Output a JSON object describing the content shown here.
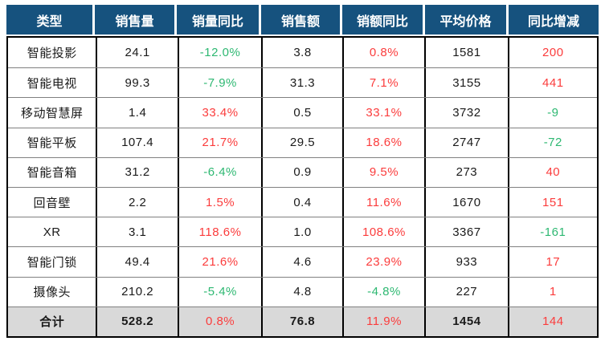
{
  "colors": {
    "header_bg": "#16527e",
    "header_text": "#ffffff",
    "positive": "#fb3c3c",
    "negative": "#2eb872",
    "total_row_bg": "#d9d9d9",
    "body_text": "#1a1a1a",
    "border_outer": "#000000",
    "border_vertical": "#000000",
    "border_horizontal": "#808080"
  },
  "table": {
    "columns": [
      {
        "key": "type",
        "label": "类型"
      },
      {
        "key": "sales_volume",
        "label": "销售量"
      },
      {
        "key": "volume_yoy",
        "label": "销量同比"
      },
      {
        "key": "sales_amount",
        "label": "销售额"
      },
      {
        "key": "amount_yoy",
        "label": "销额同比"
      },
      {
        "key": "avg_price",
        "label": "平均价格"
      },
      {
        "key": "yoy_change",
        "label": "同比增减"
      }
    ],
    "signed_columns": [
      "volume_yoy",
      "amount_yoy",
      "yoy_change"
    ],
    "rows": [
      {
        "type": "智能投影",
        "sales_volume": "24.1",
        "volume_yoy": "-12.0%",
        "sales_amount": "3.8",
        "amount_yoy": "0.8%",
        "avg_price": "1581",
        "yoy_change": "200"
      },
      {
        "type": "智能电视",
        "sales_volume": "99.3",
        "volume_yoy": "-7.9%",
        "sales_amount": "31.3",
        "amount_yoy": "7.1%",
        "avg_price": "3155",
        "yoy_change": "441"
      },
      {
        "type": "移动智慧屏",
        "sales_volume": "1.4",
        "volume_yoy": "33.4%",
        "sales_amount": "0.5",
        "amount_yoy": "33.1%",
        "avg_price": "3732",
        "yoy_change": "-9"
      },
      {
        "type": "智能平板",
        "sales_volume": "107.4",
        "volume_yoy": "21.7%",
        "sales_amount": "29.5",
        "amount_yoy": "18.6%",
        "avg_price": "2747",
        "yoy_change": "-72"
      },
      {
        "type": "智能音箱",
        "sales_volume": "31.2",
        "volume_yoy": "-6.4%",
        "sales_amount": "0.9",
        "amount_yoy": "9.5%",
        "avg_price": "273",
        "yoy_change": "40"
      },
      {
        "type": "回音壁",
        "sales_volume": "2.2",
        "volume_yoy": "1.5%",
        "sales_amount": "0.4",
        "amount_yoy": "11.6%",
        "avg_price": "1670",
        "yoy_change": "151"
      },
      {
        "type": "XR",
        "sales_volume": "3.1",
        "volume_yoy": "118.6%",
        "sales_amount": "1.0",
        "amount_yoy": "108.6%",
        "avg_price": "3367",
        "yoy_change": "-161"
      },
      {
        "type": "智能门锁",
        "sales_volume": "49.4",
        "volume_yoy": "21.6%",
        "sales_amount": "4.6",
        "amount_yoy": "23.9%",
        "avg_price": "933",
        "yoy_change": "17"
      },
      {
        "type": "摄像头",
        "sales_volume": "210.2",
        "volume_yoy": "-5.4%",
        "sales_amount": "4.8",
        "amount_yoy": "-4.8%",
        "avg_price": "227",
        "yoy_change": "1"
      }
    ],
    "total_row": {
      "type": "合计",
      "sales_volume": "528.2",
      "volume_yoy": "0.8%",
      "sales_amount": "76.8",
      "amount_yoy": "11.9%",
      "avg_price": "1454",
      "yoy_change": "144"
    }
  },
  "chart_data": {
    "type": "table",
    "title": "",
    "categories": [
      "智能投影",
      "智能电视",
      "移动智慧屏",
      "智能平板",
      "智能音箱",
      "回音壁",
      "XR",
      "智能门锁",
      "摄像头",
      "合计"
    ],
    "series": [
      {
        "name": "销售量",
        "values": [
          24.1,
          99.3,
          1.4,
          107.4,
          31.2,
          2.2,
          3.1,
          49.4,
          210.2,
          528.2
        ]
      },
      {
        "name": "销量同比(%)",
        "values": [
          -12.0,
          -7.9,
          33.4,
          21.7,
          -6.4,
          1.5,
          118.6,
          21.6,
          -5.4,
          0.8
        ]
      },
      {
        "name": "销售额",
        "values": [
          3.8,
          31.3,
          0.5,
          29.5,
          0.9,
          0.4,
          1.0,
          4.6,
          4.8,
          76.8
        ]
      },
      {
        "name": "销额同比(%)",
        "values": [
          0.8,
          7.1,
          33.1,
          18.6,
          9.5,
          11.6,
          108.6,
          23.9,
          -4.8,
          11.9
        ]
      },
      {
        "name": "平均价格",
        "values": [
          1581,
          3155,
          3732,
          2747,
          273,
          1670,
          3367,
          933,
          227,
          1454
        ]
      },
      {
        "name": "同比增减",
        "values": [
          200,
          441,
          -9,
          -72,
          40,
          151,
          -161,
          17,
          1,
          144
        ]
      }
    ],
    "layout": {
      "grid": true,
      "color_rule": "positive=red, negative=green"
    }
  }
}
